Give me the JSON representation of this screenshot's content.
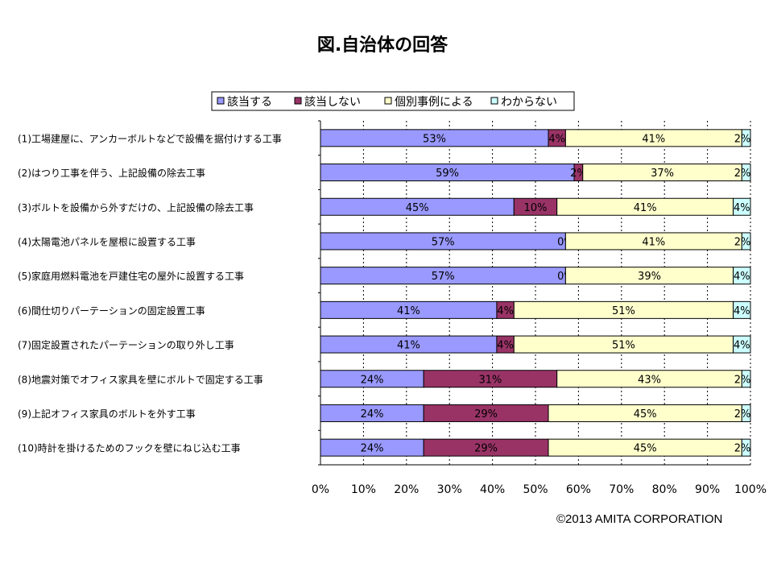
{
  "chart_data": {
    "type": "bar",
    "stacked": true,
    "orientation": "horizontal",
    "title": "図.自治体の回答",
    "categories": [
      "(1)工場建屋に、アンカーボルトなどで設備を据付けする工事",
      "(2)はつり工事を伴う、上記設備の除去工事",
      "(3)ボルトを設備から外すだけの、上記設備の除去工事",
      "(4)太陽電池パネルを屋根に設置する工事",
      "(5)家庭用燃料電池を戸建住宅の屋外に設置する工事",
      "(6)間仕切りパーテーションの固定設置工事",
      "(7)固定設置されたパーテーションの取り外し工事",
      "(8)地震対策でオフィス家具を壁にボルトで固定する工事",
      "(9)上記オフィス家具のボルトを外す工事",
      "(10)時計を掛けるためのフックを壁にねじ込む工事"
    ],
    "series": [
      {
        "name": "該当する",
        "color": "#9999ff",
        "values": [
          53,
          59,
          45,
          57,
          57,
          41,
          41,
          24,
          24,
          24
        ]
      },
      {
        "name": "該当しない",
        "color": "#993366",
        "values": [
          4,
          2,
          10,
          0,
          0,
          4,
          4,
          31,
          29,
          29
        ]
      },
      {
        "name": "個別事例による",
        "color": "#ffffcc",
        "values": [
          41,
          37,
          41,
          41,
          39,
          51,
          51,
          43,
          45,
          45
        ]
      },
      {
        "name": "わからない",
        "color": "#ccffff",
        "values": [
          2,
          2,
          4,
          2,
          4,
          4,
          4,
          2,
          2,
          2
        ]
      }
    ],
    "value_labels": [
      [
        "53%",
        "4%",
        "41%",
        "2%"
      ],
      [
        "59%",
        "2%",
        "37%",
        "2%"
      ],
      [
        "45%",
        "10%",
        "41%",
        "4%"
      ],
      [
        "57%",
        "0%",
        "41%",
        "2%"
      ],
      [
        "57%",
        "0%",
        "39%",
        "4%"
      ],
      [
        "41%",
        "4%",
        "51%",
        "4%"
      ],
      [
        "41%",
        "4%",
        "51%",
        "4%"
      ],
      [
        "24%",
        "31%",
        "43%",
        "2%"
      ],
      [
        "24%",
        "29%",
        "45%",
        "2%"
      ],
      [
        "24%",
        "29%",
        "45%",
        "2%"
      ]
    ],
    "xticks": [
      "0%",
      "10%",
      "20%",
      "30%",
      "40%",
      "50%",
      "60%",
      "70%",
      "80%",
      "90%",
      "100%"
    ],
    "xlim": [
      0,
      100
    ],
    "grid": true,
    "legend_position": "top"
  },
  "footer": {
    "copyright": "©2013  AMITA CORPORATION"
  }
}
